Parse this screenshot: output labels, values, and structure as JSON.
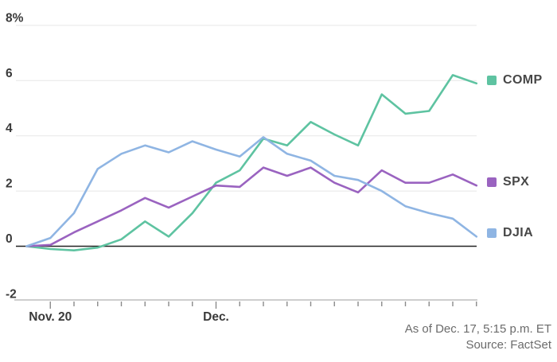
{
  "chart_data": {
    "type": "line",
    "title": "",
    "ylim": [
      -2,
      8
    ],
    "grid": true,
    "legend_position": "right",
    "baseline_value": 0,
    "n_points": 20,
    "y_ticks": [
      {
        "value": 8,
        "label": "8%"
      },
      {
        "value": 6,
        "label": "6"
      },
      {
        "value": 4,
        "label": "4"
      },
      {
        "value": 2,
        "label": "2"
      },
      {
        "value": 0,
        "label": "0"
      },
      {
        "value": -2,
        "label": "-2"
      }
    ],
    "x_tick_indices": [
      1,
      2,
      3,
      4,
      5,
      6,
      7,
      8,
      9,
      10,
      11,
      12,
      13,
      14,
      15,
      16,
      17,
      18,
      19
    ],
    "x_labeled_ticks": [
      {
        "index": 1,
        "label": "Nov. 20"
      },
      {
        "index": 8,
        "label": "Dec."
      }
    ],
    "series": [
      {
        "name": "COMP",
        "color": "#5ec3a1",
        "values": [
          0,
          -0.1,
          -0.15,
          -0.05,
          0.25,
          0.9,
          0.35,
          1.2,
          2.3,
          2.75,
          3.9,
          3.65,
          4.5,
          4.05,
          3.65,
          5.5,
          4.8,
          4.9,
          6.2,
          5.9
        ]
      },
      {
        "name": "SPX",
        "color": "#9a63c0",
        "values": [
          0,
          0.05,
          0.5,
          0.9,
          1.3,
          1.75,
          1.4,
          1.8,
          2.2,
          2.15,
          2.85,
          2.55,
          2.85,
          2.3,
          1.95,
          2.75,
          2.3,
          2.3,
          2.6,
          2.2
        ]
      },
      {
        "name": "DJIA",
        "color": "#8fb5e3",
        "values": [
          0,
          0.3,
          1.2,
          2.8,
          3.35,
          3.65,
          3.4,
          3.8,
          3.5,
          3.25,
          3.95,
          3.35,
          3.1,
          2.55,
          2.4,
          2.0,
          1.45,
          1.2,
          1.0,
          0.35
        ]
      }
    ]
  },
  "footer": {
    "as_of": "As of Dec. 17, 5:15 p.m. ET",
    "source": "Source: FactSet"
  },
  "colors": {
    "grid_line": "#e7e7e7",
    "zero_line": "#222222",
    "axis_line": "#bdbdbd",
    "tick_mark": "#8a8a8a",
    "axis_label": "#3a3a3a",
    "footnote_text": "#6b6b6b",
    "background": "#ffffff"
  }
}
